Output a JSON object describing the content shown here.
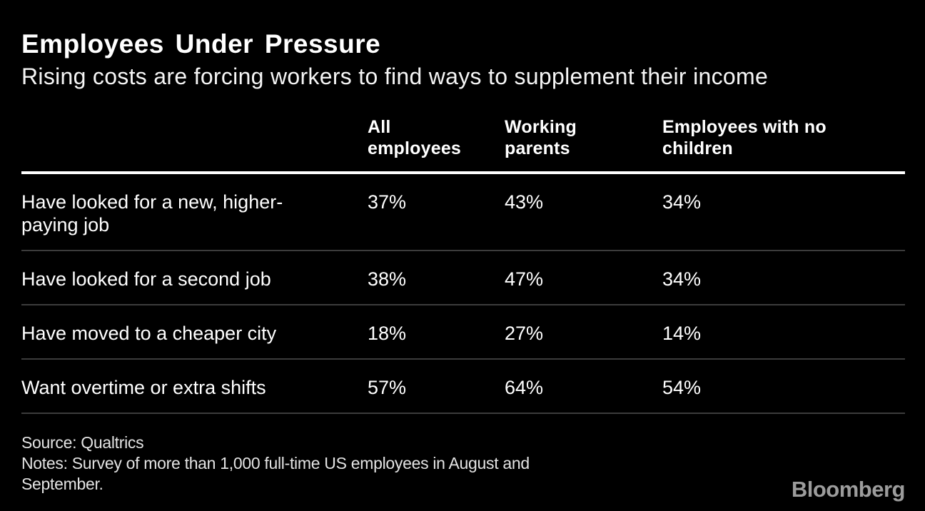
{
  "header": {
    "title": "Employees Under Pressure",
    "subtitle": "Rising costs are forcing workers to find ways to supplement their income"
  },
  "table": {
    "columns": [
      "All\nemployees",
      "Working\nparents",
      "Employees with no\nchildren"
    ],
    "rows": [
      {
        "label": "Have looked for a new, higher-\npaying job",
        "values": [
          "37%",
          "43%",
          "34%"
        ]
      },
      {
        "label": "Have looked for a second job",
        "values": [
          "38%",
          "47%",
          "34%"
        ]
      },
      {
        "label": "Have moved to a cheaper city",
        "values": [
          "18%",
          "27%",
          "14%"
        ]
      },
      {
        "label": "Want overtime or extra shifts",
        "values": [
          "57%",
          "64%",
          "54%"
        ]
      }
    ]
  },
  "footer": {
    "source": "Source: Qualtrics",
    "notes": "Notes: Survey of more than 1,000 full-time US employees in August and\nSeptember.",
    "logo": "Bloomberg"
  },
  "colors": {
    "background": "#000000",
    "text": "#ffffff",
    "header_rule": "#ffffff",
    "row_divider": "#3c3c3c",
    "logo_gray": "#9c9c9c"
  },
  "chart_data": {
    "type": "table",
    "title": "Employees Under Pressure",
    "subtitle": "Rising costs are forcing workers to find ways to supplement their income",
    "categories": [
      "Have looked for a new, higher-paying job",
      "Have looked for a second job",
      "Have moved to a cheaper city",
      "Want overtime or extra shifts"
    ],
    "series": [
      {
        "name": "All employees",
        "values": [
          37,
          38,
          18,
          57
        ]
      },
      {
        "name": "Working parents",
        "values": [
          43,
          47,
          27,
          64
        ]
      },
      {
        "name": "Employees with no children",
        "values": [
          34,
          34,
          14,
          54
        ]
      }
    ],
    "unit": "%",
    "source": "Qualtrics",
    "notes": "Survey of more than 1,000 full-time US employees in August and September."
  }
}
